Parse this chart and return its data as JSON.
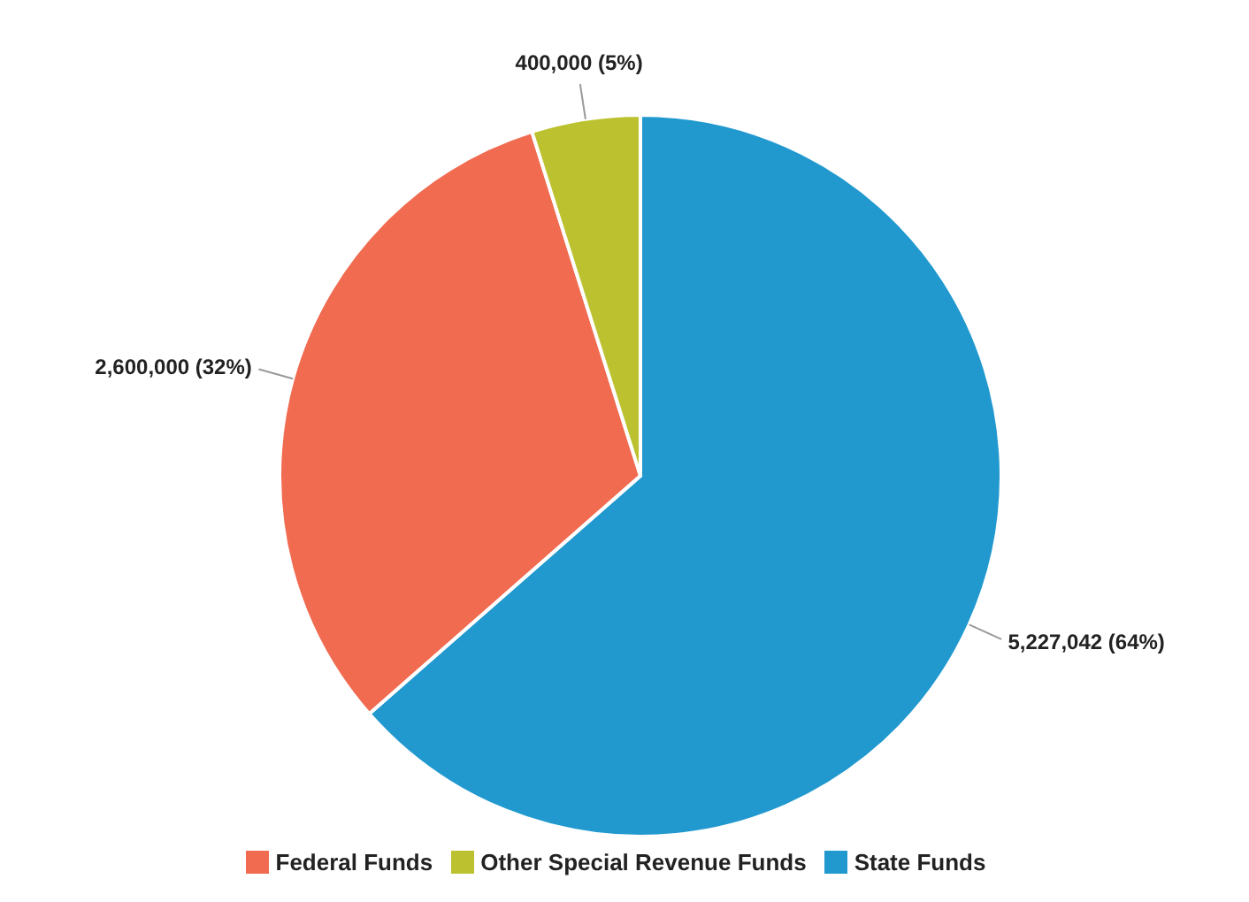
{
  "chart_data": {
    "type": "pie",
    "categories": [
      "State Funds",
      "Federal Funds",
      "Other Special Revenue Funds"
    ],
    "values": [
      5227042,
      2600000,
      400000
    ],
    "colors": [
      "#2199cf",
      "#f06b50",
      "#bcc22f"
    ],
    "value_labels": [
      "5,227,042 (64%)",
      "2,600,000 (32%)",
      "400,000 (5%)"
    ],
    "legend": "bottom"
  }
}
